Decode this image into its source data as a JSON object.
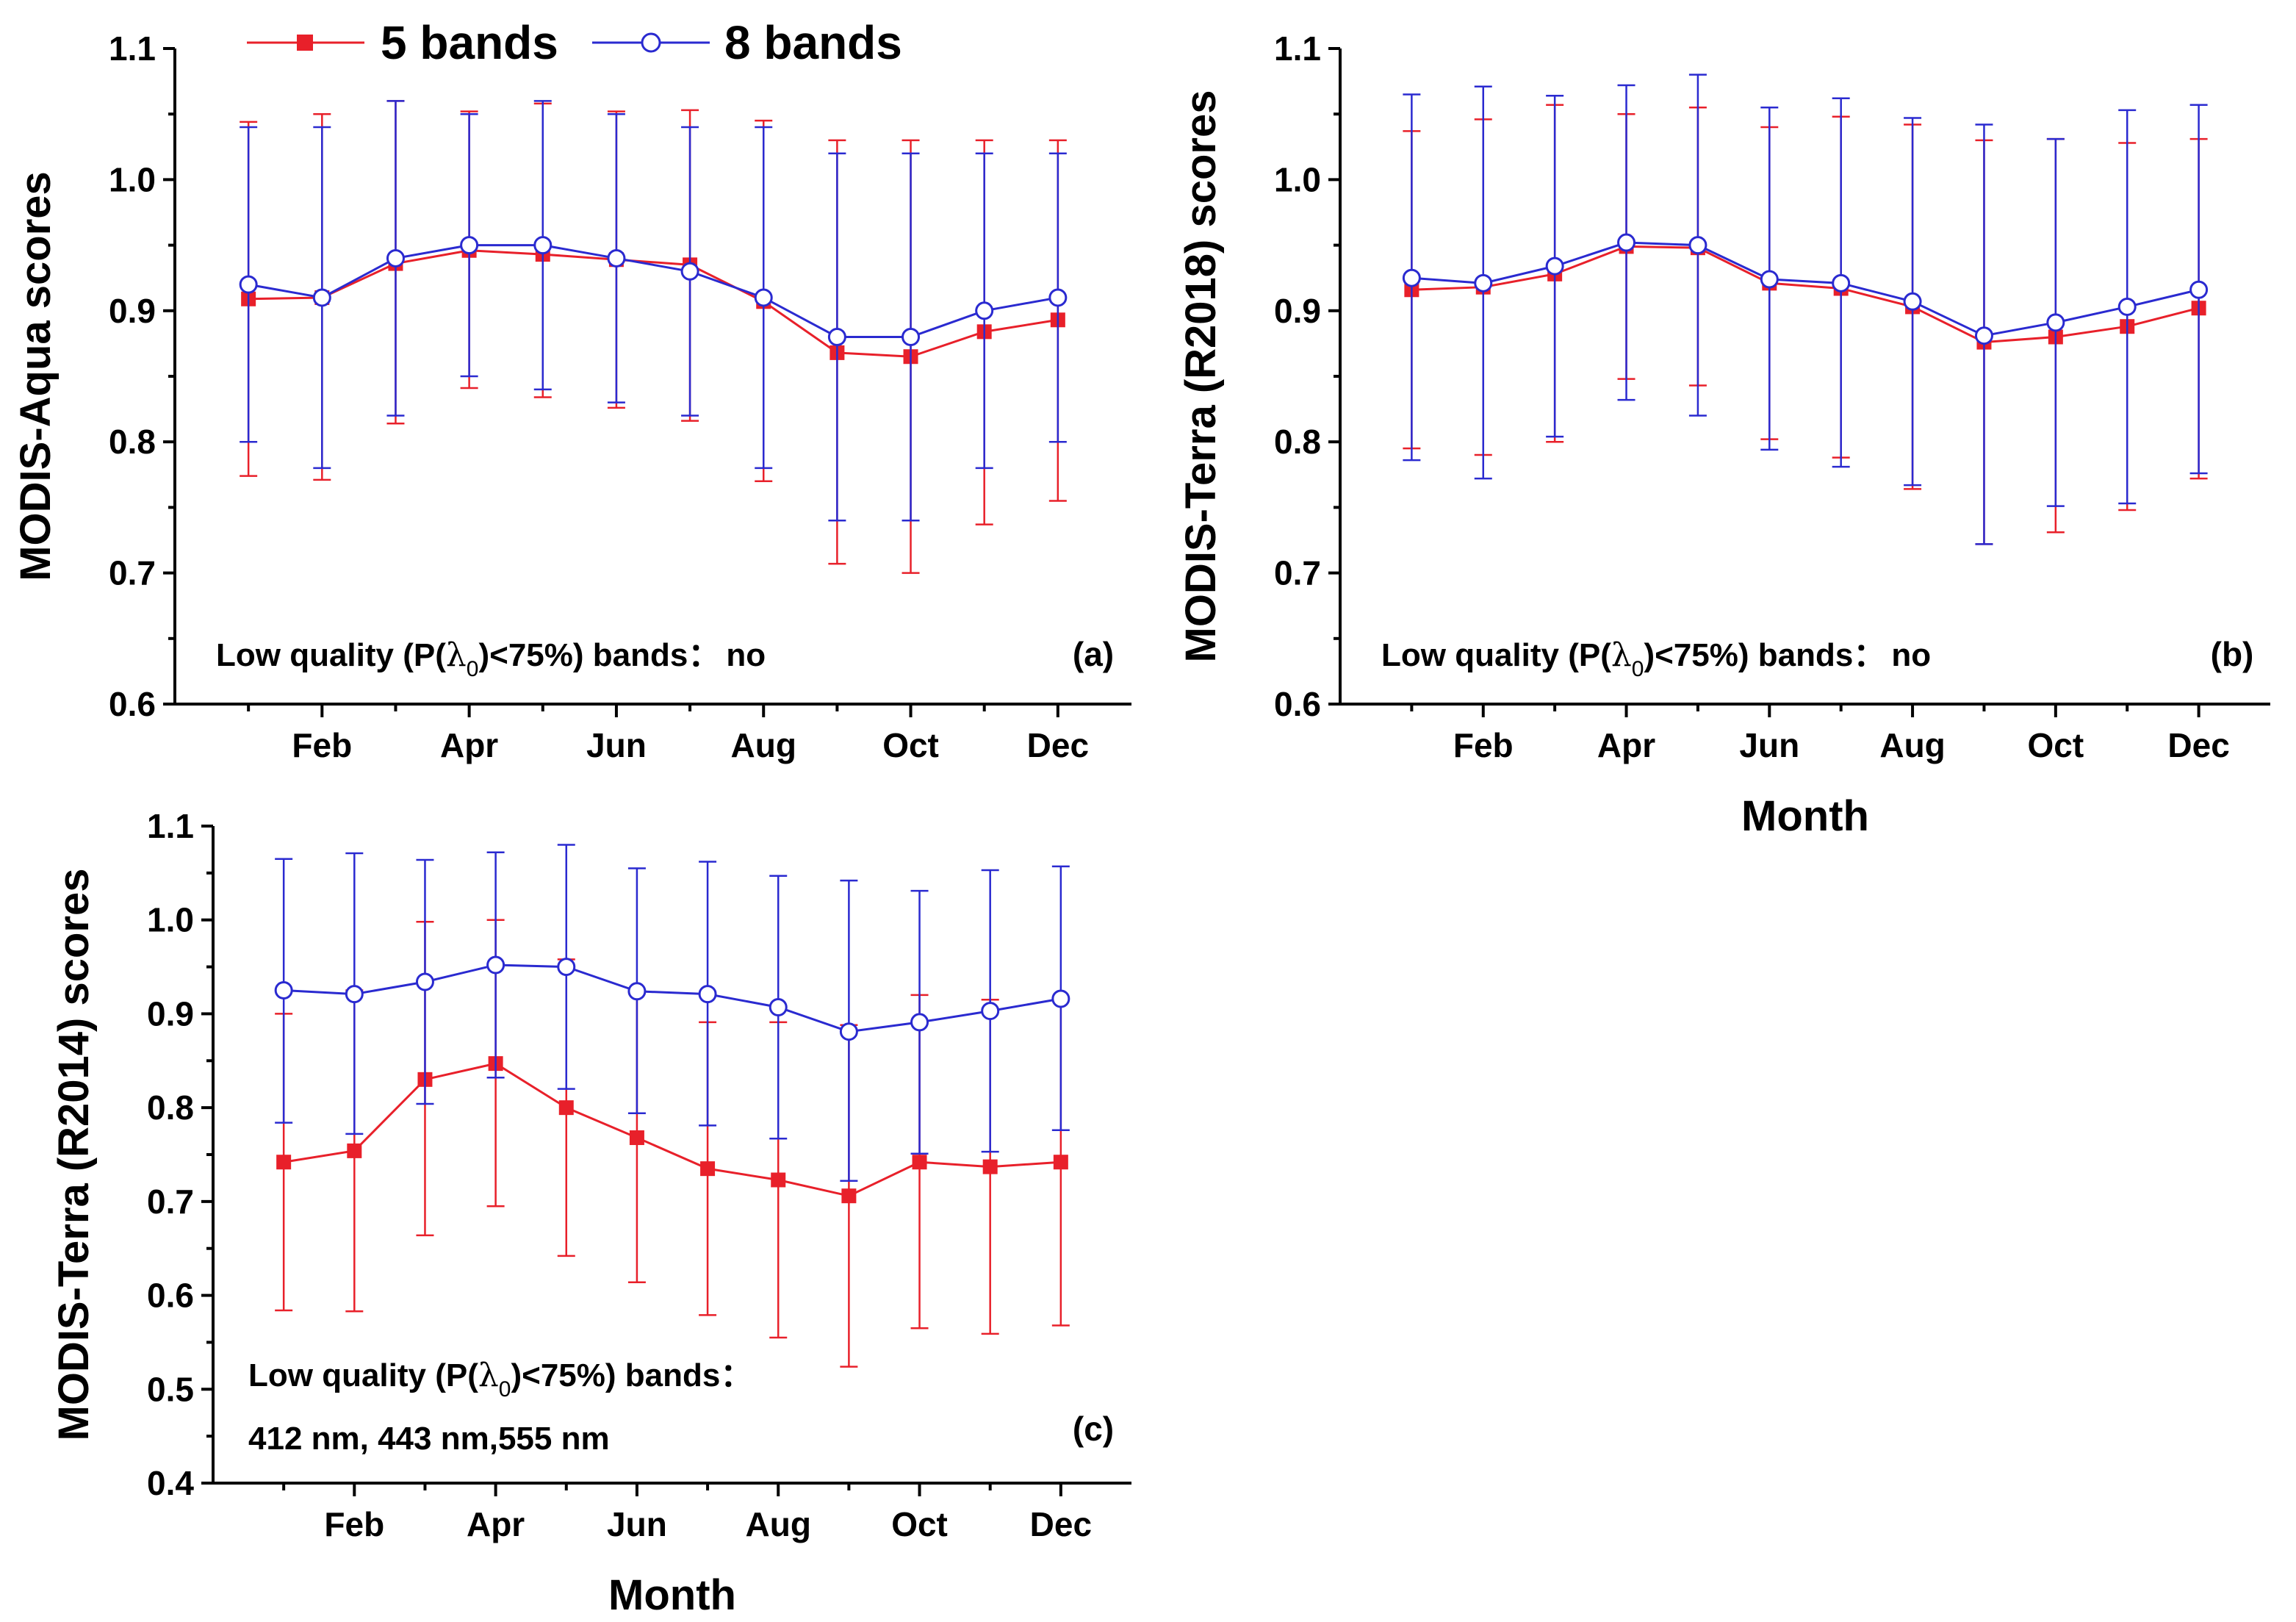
{
  "colors": {
    "series5": "#e8202a",
    "series8": "#2a2ad0",
    "axis": "#000000"
  },
  "legend": {
    "items": [
      {
        "label": "5 bands",
        "marker": "filled-square"
      },
      {
        "label": "8 bands",
        "marker": "open-circle"
      }
    ]
  },
  "chart_data": [
    {
      "panel": "a",
      "type": "line",
      "tag": "(a)",
      "ylabel": "MODIS-Aqua scores",
      "xlabel": "",
      "ylim": [
        0.6,
        1.1
      ],
      "yticks": [
        "0.6",
        "0.7",
        "0.8",
        "0.9",
        "1.0",
        "1.1"
      ],
      "xtick_labels": [
        "Feb",
        "Apr",
        "Jun",
        "Aug",
        "Oct",
        "Dec"
      ],
      "note_prefix": "Low quality (P(",
      "note_symbol": "λ",
      "note_sub": "0",
      "note_suffix": ")<75%) bands：",
      "note_value": "no",
      "note_line2": "",
      "series": [
        {
          "name": "5 bands",
          "values": [
            0.909,
            0.91,
            0.936,
            0.946,
            0.943,
            0.939,
            0.935,
            0.907,
            0.868,
            0.865,
            0.884,
            0.893
          ],
          "err_low": [
            0.774,
            0.771,
            0.814,
            0.841,
            0.834,
            0.826,
            0.816,
            0.77,
            0.707,
            0.7,
            0.737,
            0.755
          ],
          "err_high": [
            1.044,
            1.05,
            1.06,
            1.052,
            1.058,
            1.052,
            1.053,
            1.045,
            1.03,
            1.03,
            1.03,
            1.03
          ]
        },
        {
          "name": "8 bands",
          "values": [
            0.92,
            0.91,
            0.94,
            0.95,
            0.95,
            0.94,
            0.93,
            0.91,
            0.88,
            0.88,
            0.9,
            0.91
          ],
          "err_low": [
            0.8,
            0.78,
            0.82,
            0.85,
            0.84,
            0.83,
            0.82,
            0.78,
            0.74,
            0.74,
            0.78,
            0.8
          ],
          "err_high": [
            1.04,
            1.04,
            1.06,
            1.05,
            1.06,
            1.05,
            1.04,
            1.04,
            1.02,
            1.02,
            1.02,
            1.02
          ]
        }
      ]
    },
    {
      "panel": "b",
      "type": "line",
      "tag": "(b)",
      "ylabel": "MODIS-Terra (R2018) scores",
      "xlabel": "Month",
      "ylim": [
        0.6,
        1.1
      ],
      "yticks": [
        "0.6",
        "0.7",
        "0.8",
        "0.9",
        "1.0",
        "1.1"
      ],
      "xtick_labels": [
        "Feb",
        "Apr",
        "Jun",
        "Aug",
        "Oct",
        "Dec"
      ],
      "note_prefix": "Low quality (P(",
      "note_symbol": "λ",
      "note_sub": "0",
      "note_suffix": ")<75%) bands：",
      "note_value": "no",
      "note_line2": "",
      "series": [
        {
          "name": "5 bands",
          "values": [
            0.916,
            0.918,
            0.928,
            0.949,
            0.948,
            0.921,
            0.917,
            0.903,
            0.876,
            0.88,
            0.888,
            0.902
          ],
          "err_low": [
            0.795,
            0.79,
            0.8,
            0.848,
            0.843,
            0.802,
            0.788,
            0.764,
            0.722,
            0.731,
            0.748,
            0.772
          ],
          "err_high": [
            1.037,
            1.046,
            1.057,
            1.05,
            1.055,
            1.04,
            1.048,
            1.042,
            1.03,
            1.031,
            1.028,
            1.031
          ]
        },
        {
          "name": "8 bands",
          "values": [
            0.925,
            0.921,
            0.934,
            0.952,
            0.95,
            0.924,
            0.921,
            0.907,
            0.881,
            0.891,
            0.903,
            0.916
          ],
          "err_low": [
            0.786,
            0.772,
            0.804,
            0.832,
            0.82,
            0.794,
            0.781,
            0.767,
            0.722,
            0.751,
            0.753,
            0.776
          ],
          "err_high": [
            1.065,
            1.071,
            1.064,
            1.072,
            1.08,
            1.055,
            1.062,
            1.047,
            1.042,
            1.031,
            1.053,
            1.057
          ]
        }
      ]
    },
    {
      "panel": "c",
      "type": "line",
      "tag": "(c)",
      "ylabel": "MODIS-Terra (R2014) scores",
      "xlabel": "Month",
      "ylim": [
        0.4,
        1.1
      ],
      "yticks": [
        "0.4",
        "0.5",
        "0.6",
        "0.7",
        "0.8",
        "0.9",
        "1.0",
        "1.1"
      ],
      "xtick_labels": [
        "Feb",
        "Apr",
        "Jun",
        "Aug",
        "Oct",
        "Dec"
      ],
      "note_prefix": "Low quality (P(",
      "note_symbol": "λ",
      "note_sub": "0",
      "note_suffix": ")<75%) bands：",
      "note_value": "",
      "note_line2": "412 nm, 443 nm,555 nm",
      "series": [
        {
          "name": "5 bands",
          "values": [
            0.742,
            0.754,
            0.83,
            0.847,
            0.8,
            0.768,
            0.735,
            0.723,
            0.706,
            0.742,
            0.737,
            0.742
          ],
          "err_low": [
            0.584,
            0.583,
            0.664,
            0.695,
            0.642,
            0.614,
            0.579,
            0.555,
            0.524,
            0.565,
            0.559,
            0.568
          ],
          "err_high": [
            0.9,
            0.925,
            0.998,
            1.0,
            0.958,
            0.922,
            0.891,
            0.891,
            0.888,
            0.92,
            0.915,
            0.916
          ]
        },
        {
          "name": "8 bands",
          "values": [
            0.925,
            0.921,
            0.934,
            0.952,
            0.95,
            0.924,
            0.921,
            0.907,
            0.881,
            0.891,
            0.903,
            0.916
          ],
          "err_low": [
            0.784,
            0.772,
            0.804,
            0.832,
            0.82,
            0.794,
            0.781,
            0.767,
            0.722,
            0.751,
            0.753,
            0.776
          ],
          "err_high": [
            1.065,
            1.071,
            1.064,
            1.072,
            1.08,
            1.055,
            1.062,
            1.047,
            1.042,
            1.031,
            1.053,
            1.057
          ]
        }
      ]
    }
  ]
}
